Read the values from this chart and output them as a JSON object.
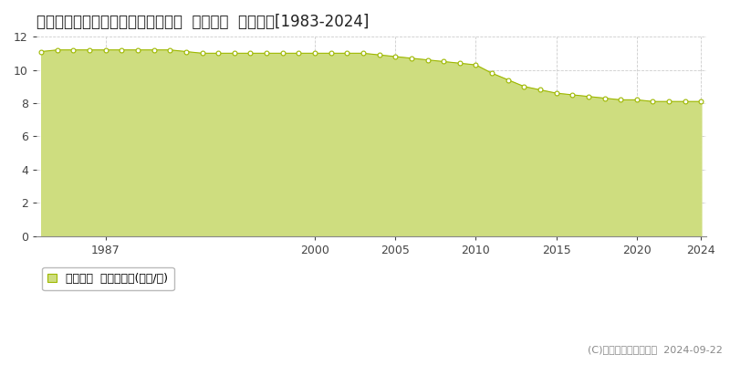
{
  "title": "宮崎県都城市下川東１丁目７号８番  基準地価  地価推移[1983-2024]",
  "years": [
    1983,
    1984,
    1985,
    1986,
    1987,
    1988,
    1989,
    1990,
    1991,
    1992,
    1993,
    1994,
    1995,
    1996,
    1997,
    1998,
    1999,
    2000,
    2001,
    2002,
    2003,
    2004,
    2005,
    2006,
    2007,
    2008,
    2009,
    2010,
    2011,
    2012,
    2013,
    2014,
    2015,
    2016,
    2017,
    2018,
    2019,
    2020,
    2021,
    2022,
    2023,
    2024
  ],
  "values": [
    11.1,
    11.2,
    11.2,
    11.2,
    11.2,
    11.2,
    11.2,
    11.2,
    11.2,
    11.1,
    11.0,
    11.0,
    11.0,
    11.0,
    11.0,
    11.0,
    11.0,
    11.0,
    11.0,
    11.0,
    11.0,
    10.9,
    10.8,
    10.7,
    10.6,
    10.5,
    10.4,
    10.3,
    9.8,
    9.4,
    9.0,
    8.8,
    8.6,
    8.5,
    8.4,
    8.3,
    8.2,
    8.2,
    8.1,
    8.1,
    8.1,
    8.1
  ],
  "fill_color": "#cedd7f",
  "line_color": "#9eb800",
  "marker_facecolor": "#ffffff",
  "marker_edgecolor": "#9eb800",
  "background_color": "#ffffff",
  "plot_bg_color": "#ffffff",
  "grid_color": "#cccccc",
  "ylim": [
    0,
    12
  ],
  "yticks": [
    0,
    2,
    4,
    6,
    8,
    10,
    12
  ],
  "xticks": [
    1987,
    2000,
    2005,
    2010,
    2015,
    2020,
    2024
  ],
  "legend_label": "基準地価  平均坪単価(万円/坪)",
  "copyright_text": "(C)土地価格ドットコム  2024-09-22",
  "title_fontsize": 12,
  "tick_fontsize": 9,
  "legend_fontsize": 9
}
